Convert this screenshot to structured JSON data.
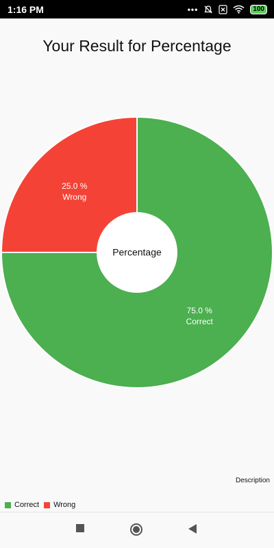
{
  "status_bar": {
    "time": "1:16 PM",
    "battery": "100",
    "icons": [
      "dots-icon",
      "mute-icon",
      "sim-x-icon",
      "wifi-icon",
      "battery-icon"
    ]
  },
  "page": {
    "title": "Your Result for Percentage",
    "description": "Description"
  },
  "colors": {
    "correct": "#4caf50",
    "wrong": "#f44336"
  },
  "chart_data": {
    "type": "pie",
    "center_text": "Percentage",
    "slices": [
      {
        "name": "Correct",
        "value": 75.0,
        "label_value": "75.0 %",
        "label_name": "Correct",
        "color": "#4caf50"
      },
      {
        "name": "Wrong",
        "value": 25.0,
        "label_value": "25.0 %",
        "label_name": "Wrong",
        "color": "#f44336"
      }
    ],
    "legend": [
      "Correct",
      "Wrong"
    ],
    "legend_position": "bottom-left"
  },
  "nav": {
    "icons": [
      "recents-icon",
      "home-icon",
      "back-icon"
    ]
  }
}
